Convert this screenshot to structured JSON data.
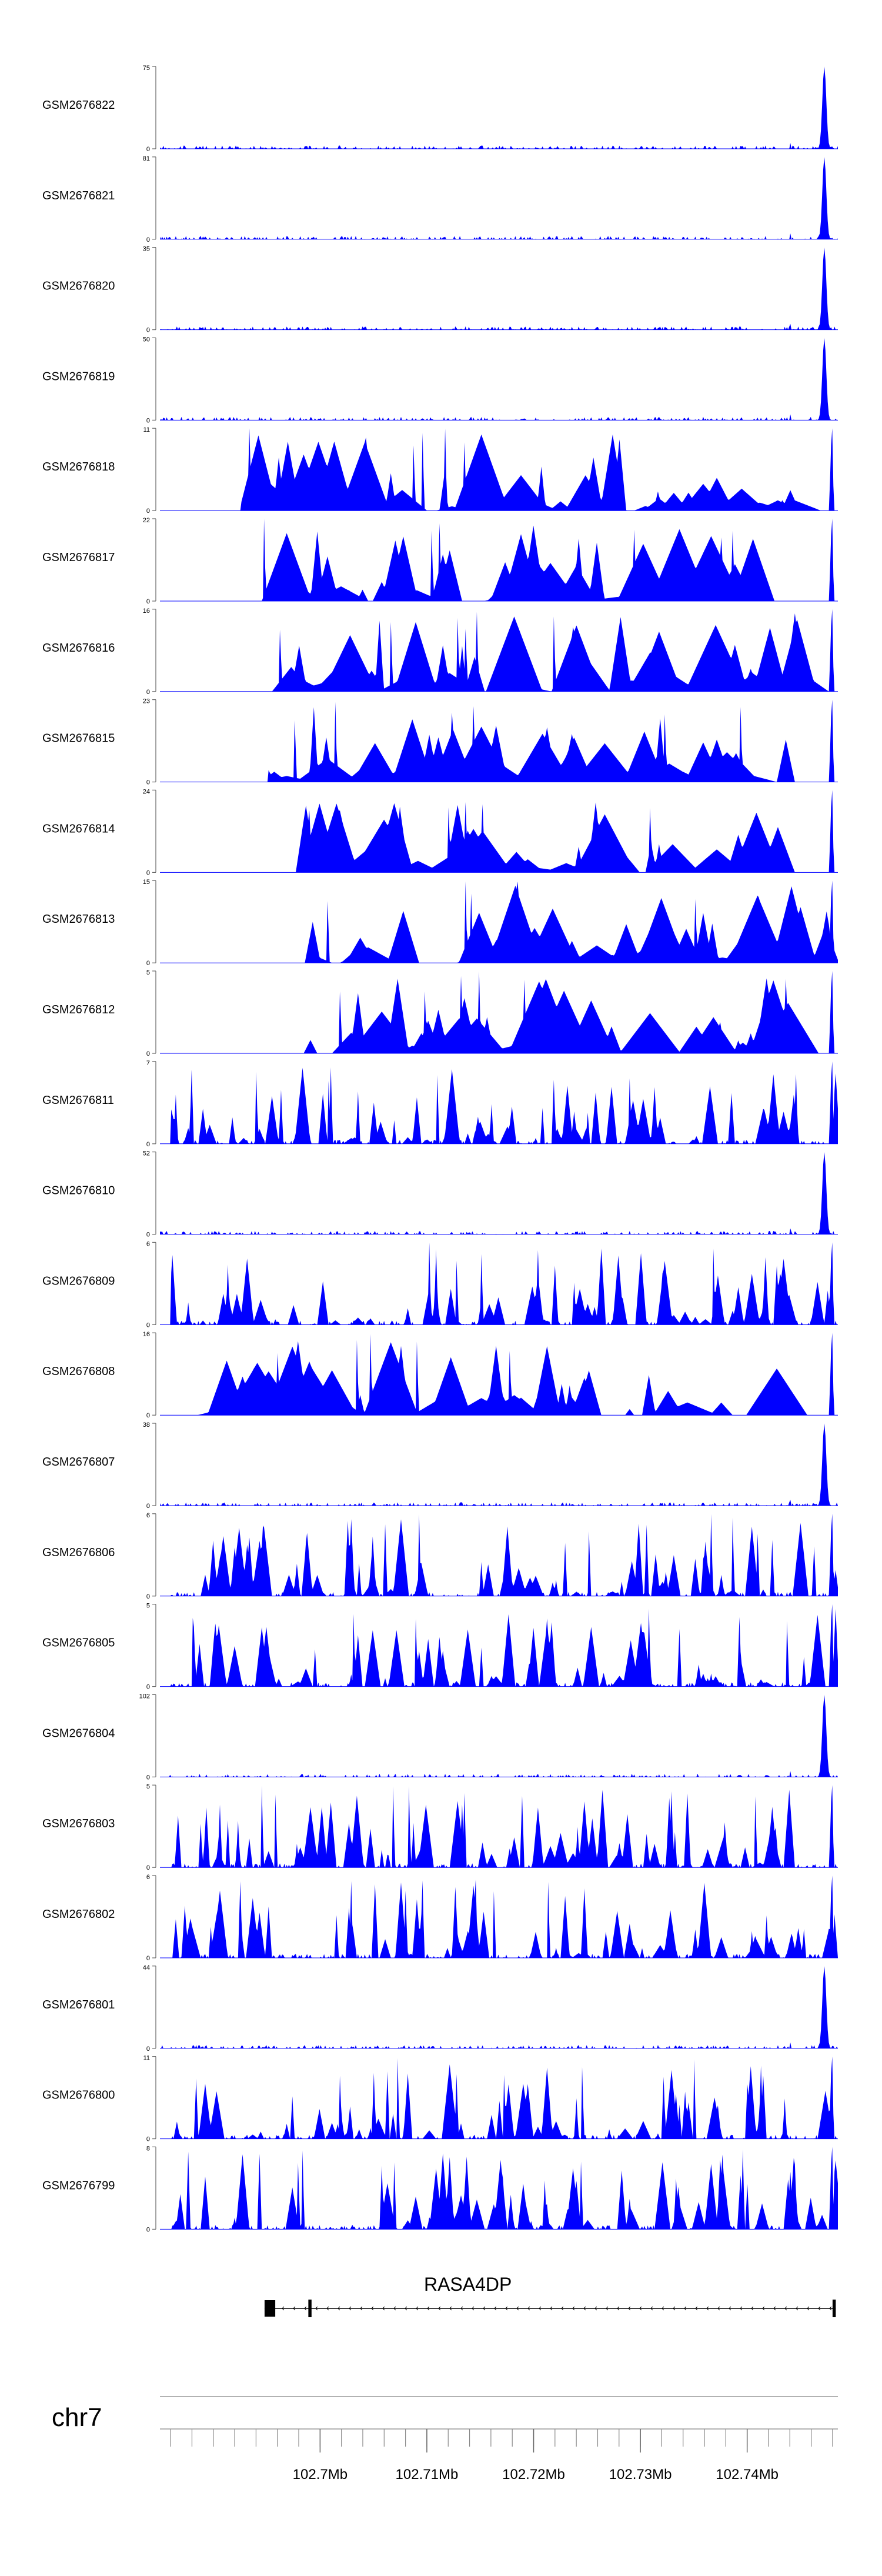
{
  "chart_data": {
    "type": "area",
    "title": "",
    "chromosome": "chr7",
    "fill_color": "#0000ff",
    "axis_color": "#666666",
    "x_range_mb": [
      102.685,
      102.7485
    ],
    "x_ticks_mb": [
      102.7,
      102.71,
      102.72,
      102.73,
      102.74
    ],
    "x_tick_labels": [
      "102.7Mb",
      "102.71Mb",
      "102.72Mb",
      "102.73Mb",
      "102.74Mb"
    ],
    "gene": {
      "name": "RASA4DP",
      "start_mb": 102.6948,
      "end_mb": 102.7483,
      "exons_mb": [
        [
          102.6948,
          102.6958
        ],
        [
          102.6989,
          102.6992
        ],
        [
          102.748,
          102.7483
        ]
      ],
      "strand": "-"
    },
    "tracks": [
      {
        "name": "GSM2676822",
        "ymin": "0",
        "ymax": "75",
        "pattern": "peak",
        "max": 75
      },
      {
        "name": "GSM2676821",
        "ymin": "0",
        "ymax": "81",
        "pattern": "peak",
        "max": 81
      },
      {
        "name": "GSM2676820",
        "ymin": "0",
        "ymax": "35",
        "pattern": "peak",
        "max": 35
      },
      {
        "name": "GSM2676819",
        "ymin": "0",
        "ymax": "50",
        "pattern": "peak",
        "max": 50
      },
      {
        "name": "GSM2676818",
        "ymin": "0",
        "ymax": "11",
        "pattern": "sparse",
        "max": 11
      },
      {
        "name": "GSM2676817",
        "ymin": "0",
        "ymax": "22",
        "pattern": "sparse",
        "max": 22
      },
      {
        "name": "GSM2676816",
        "ymin": "0",
        "ymax": "16",
        "pattern": "sparse",
        "max": 16
      },
      {
        "name": "GSM2676815",
        "ymin": "0",
        "ymax": "23",
        "pattern": "sparse",
        "max": 23
      },
      {
        "name": "GSM2676814",
        "ymin": "0",
        "ymax": "24",
        "pattern": "sparse",
        "max": 24
      },
      {
        "name": "GSM2676813",
        "ymin": "0",
        "ymax": "15",
        "pattern": "sparse",
        "max": 15
      },
      {
        "name": "GSM2676812",
        "ymin": "0",
        "ymax": "5",
        "pattern": "sparse",
        "max": 5
      },
      {
        "name": "GSM2676811",
        "ymin": "0",
        "ymax": "7",
        "pattern": "dense",
        "max": 7
      },
      {
        "name": "GSM2676810",
        "ymin": "0",
        "ymax": "52",
        "pattern": "peak",
        "max": 52
      },
      {
        "name": "GSM2676809",
        "ymin": "0",
        "ymax": "6",
        "pattern": "dense",
        "max": 6
      },
      {
        "name": "GSM2676808",
        "ymin": "0",
        "ymax": "16",
        "pattern": "sparse",
        "max": 16
      },
      {
        "name": "GSM2676807",
        "ymin": "0",
        "ymax": "38",
        "pattern": "peak",
        "max": 38
      },
      {
        "name": "GSM2676806",
        "ymin": "0",
        "ymax": "6",
        "pattern": "dense",
        "max": 6
      },
      {
        "name": "GSM2676805",
        "ymin": "0",
        "ymax": "5",
        "pattern": "dense",
        "max": 5
      },
      {
        "name": "GSM2676804",
        "ymin": "0",
        "ymax": "102",
        "pattern": "peak",
        "max": 102
      },
      {
        "name": "GSM2676803",
        "ymin": "0",
        "ymax": "5",
        "pattern": "dense",
        "max": 5
      },
      {
        "name": "GSM2676802",
        "ymin": "0",
        "ymax": "6",
        "pattern": "dense",
        "max": 6
      },
      {
        "name": "GSM2676801",
        "ymin": "0",
        "ymax": "44",
        "pattern": "peak",
        "max": 44
      },
      {
        "name": "GSM2676800",
        "ymin": "0",
        "ymax": "11",
        "pattern": "dense",
        "max": 11
      },
      {
        "name": "GSM2676799",
        "ymin": "0",
        "ymax": "8",
        "pattern": "dense",
        "max": 8
      }
    ]
  }
}
